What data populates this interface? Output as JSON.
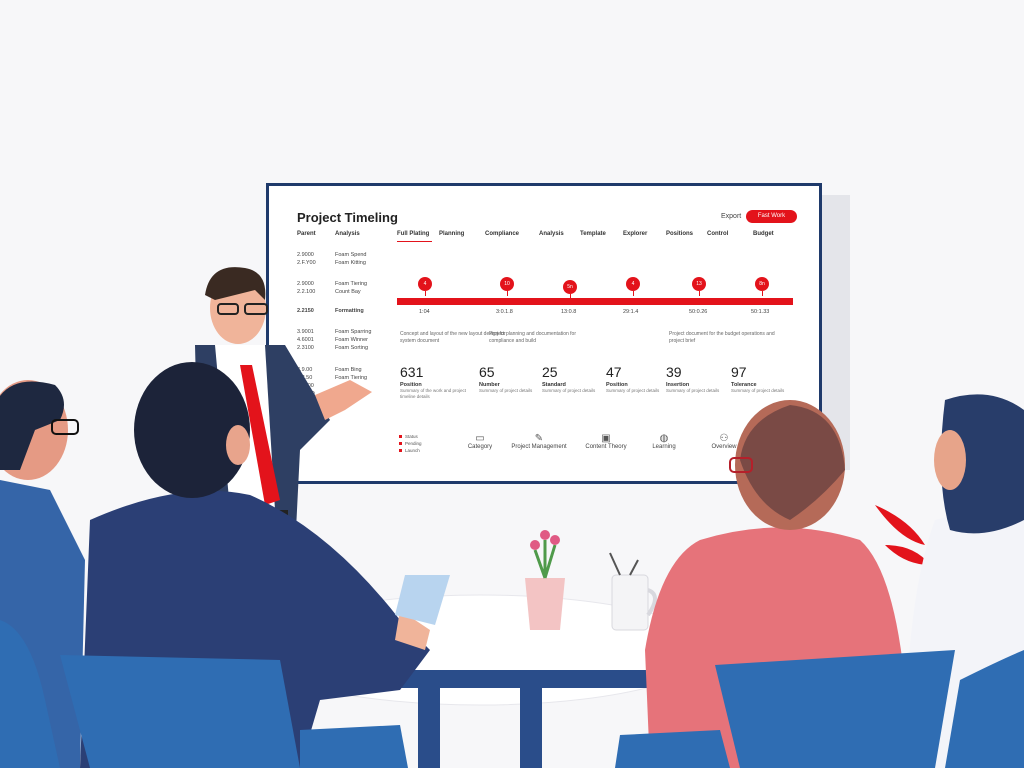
{
  "screen": {
    "title": "Project Timeling",
    "export_label": "Export",
    "new_button_label": "Fast Work",
    "left_headers": [
      "Parent",
      "Analysis"
    ],
    "columns": [
      "Full Plating",
      "Planning",
      "Compliance",
      "Analysis",
      "Template",
      "Explorer",
      "Positions",
      "Control",
      "Budget"
    ],
    "left_rows": [
      {
        "code": "2.9000\n2.F.Y00",
        "name": "Foam Spend\nFoam Kitting"
      },
      {
        "code": "2.9000\n2.2.100",
        "name": "Foam Tiering\nCount Bay"
      },
      {
        "code": "2.2150",
        "name": "Formatting"
      },
      {
        "code": "3.9001\n4.6001\n2.3100",
        "name": "Foam Sparring\nFoam Winner\nFoam Sorting"
      },
      {
        "code": "3.9.00\n6.2.50\n3.9000\n2.E.VO",
        "name": "Foam Bing\nFoam Tiering"
      }
    ],
    "milestones": [
      "4",
      "10",
      "5n",
      "4",
      "13",
      "8n"
    ],
    "dates": [
      "1:04",
      "3:0.1.8",
      "13:0.8",
      "29:1.4",
      "50:0.26",
      "50:1.33"
    ],
    "descriptions": [
      "Concept and layout of the new layout design for system document",
      "Project planning and documentation for compliance and build",
      "Project document for the budget operations and project brief"
    ],
    "stats": [
      {
        "value": "631",
        "label": "Position",
        "sub": "Summary of the work and project timeline details"
      },
      {
        "value": "65",
        "label": "Number",
        "sub": "Summary of project details"
      },
      {
        "value": "25",
        "label": "Standard",
        "sub": "Summary of project details"
      },
      {
        "value": "47",
        "label": "Position",
        "sub": "Summary of project details"
      },
      {
        "value": "39",
        "label": "Insertion",
        "sub": "Summary of project details"
      },
      {
        "value": "97",
        "label": "Tolerance",
        "sub": "Summary of project details"
      }
    ],
    "legend": [
      "Status",
      "Pending",
      "Launch"
    ],
    "footer_items": [
      {
        "icon": "briefcase-icon",
        "label": "Category"
      },
      {
        "icon": "chart-icon",
        "label": "Project Management"
      },
      {
        "icon": "image-icon",
        "label": "Content Theory"
      },
      {
        "icon": "globe-icon",
        "label": "Learning"
      },
      {
        "icon": "people-icon",
        "label": "Overview"
      }
    ]
  },
  "colors": {
    "accent": "#e3131b",
    "frame": "#1f3a6b",
    "chair": "#2f6db3",
    "pink_jacket": "#e6737a"
  }
}
